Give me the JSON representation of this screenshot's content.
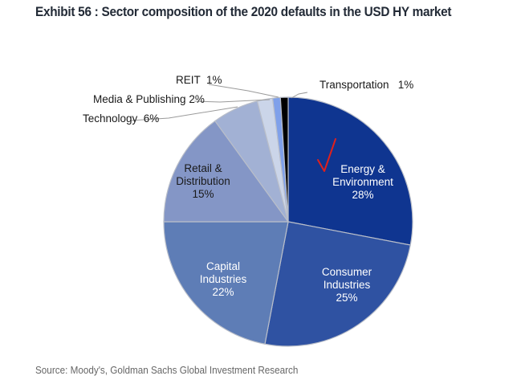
{
  "title": "Exhibit 56 : Sector composition of the 2020 defaults in the USD HY market",
  "source": "Source: Moody's, Goldman Sachs Global Investment Research",
  "chart_data": {
    "type": "pie",
    "title": "Exhibit 56 : Sector composition of the 2020 defaults in the USD HY market",
    "unit": "%",
    "start": "12 o'clock, clockwise",
    "slices": [
      {
        "label": "Energy & Environment",
        "value": 28,
        "color": "#0f3590",
        "text_color": "#ffffff",
        "label_lines": [
          "Energy &",
          "Environment",
          "28%"
        ],
        "inside": true
      },
      {
        "label": "Consumer Industries",
        "value": 25,
        "color": "#2f52a2",
        "text_color": "#ffffff",
        "label_lines": [
          "Consumer",
          "Industries",
          "25%"
        ],
        "inside": true
      },
      {
        "label": "Capital Industries",
        "value": 22,
        "color": "#5e7db6",
        "text_color": "#ffffff",
        "label_lines": [
          "Capital",
          "Industries",
          "22%"
        ],
        "inside": true
      },
      {
        "label": "Retail & Distribution",
        "value": 15,
        "color": "#8496c6",
        "text_color": "#1a1a1a",
        "label_lines": [
          "Retail &",
          "Distribution",
          "15%"
        ],
        "inside": true
      },
      {
        "label": "Technology",
        "value": 6,
        "color": "#a2b1d4",
        "text_color": "#1a1a1a",
        "label_lines": [
          "Technology  6%"
        ],
        "inside": false
      },
      {
        "label": "Media & Publishing",
        "value": 2,
        "color": "#cbd5e9",
        "text_color": "#1a1a1a",
        "label_lines": [
          "Media & Publishing 2%"
        ],
        "inside": false
      },
      {
        "label": "REIT",
        "value": 1,
        "color": "#7fa0ea",
        "text_color": "#1a1a1a",
        "label_lines": [
          "REIT  1%"
        ],
        "inside": false
      },
      {
        "label": "Transportation",
        "value": 1,
        "color": "#000000",
        "text_color": "#1a1a1a",
        "label_lines": [
          "Transportation   1%"
        ],
        "inside": false
      }
    ],
    "annotation": {
      "type": "checkmark",
      "color": "#e0201c",
      "on_slice": "Energy & Environment"
    }
  }
}
